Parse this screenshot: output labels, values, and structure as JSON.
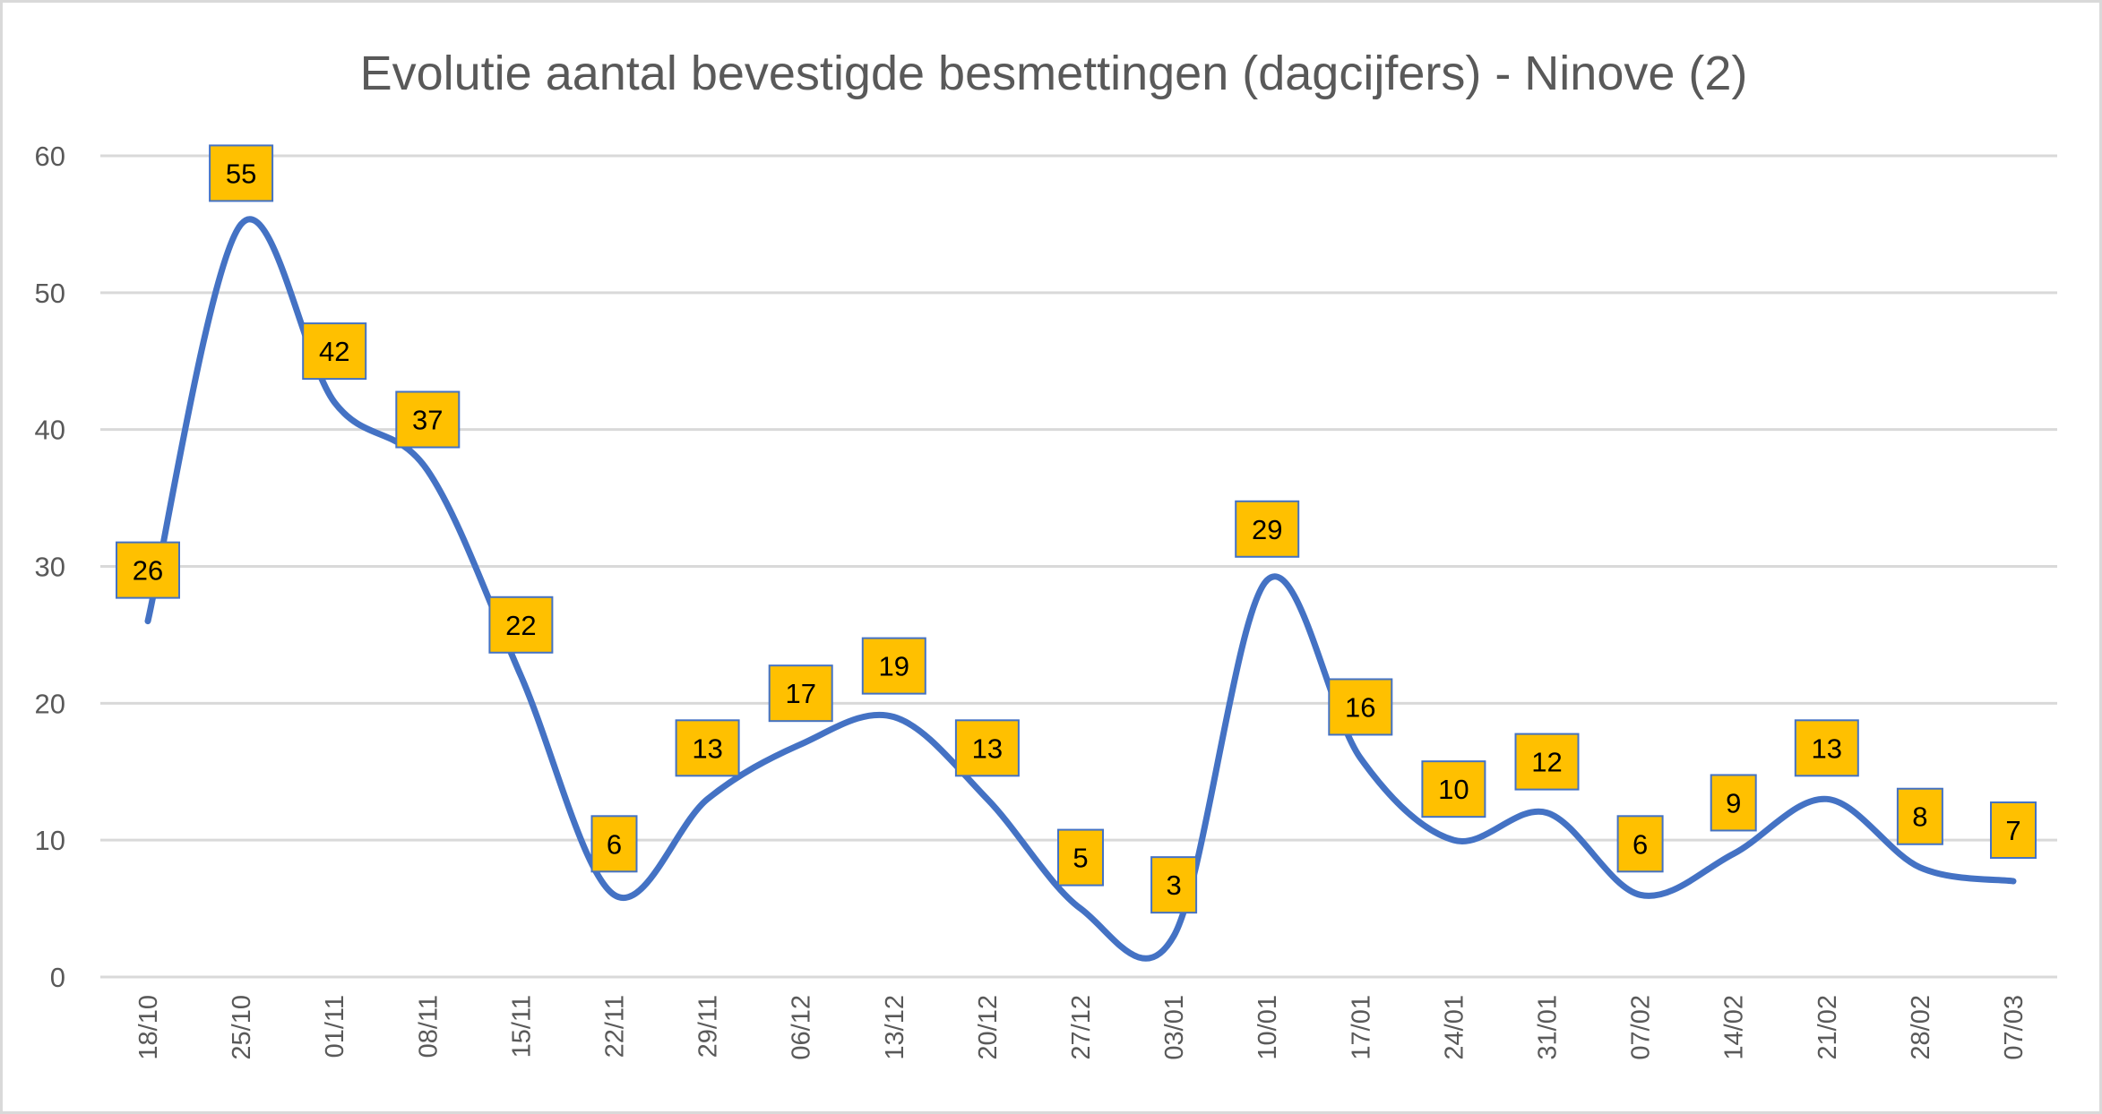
{
  "chart_data": {
    "type": "line",
    "title": "Evolutie aantal bevestigde besmettingen (dagcijfers) - Ninove (2)",
    "xlabel": "",
    "ylabel": "",
    "categories": [
      "18/10",
      "25/10",
      "01/11",
      "08/11",
      "15/11",
      "22/11",
      "29/11",
      "06/12",
      "13/12",
      "20/12",
      "27/12",
      "03/01",
      "10/01",
      "17/01",
      "24/01",
      "31/01",
      "07/02",
      "14/02",
      "21/02",
      "28/02",
      "07/03"
    ],
    "series": [
      {
        "values": [
          26,
          55,
          42,
          37,
          22,
          6,
          13,
          17,
          19,
          13,
          5,
          3,
          29,
          16,
          10,
          12,
          6,
          9,
          13,
          8,
          7
        ]
      }
    ],
    "ylim": [
      0,
      60
    ],
    "yticks": [
      0,
      10,
      20,
      30,
      40,
      50,
      60
    ],
    "grid": true,
    "smooth": true,
    "data_labels": true,
    "legend": "none",
    "colors": {
      "line": "#4472c4",
      "label_fill": "#ffc000",
      "label_border": "#4472c4",
      "grid": "#d9d9d9",
      "text": "#595959"
    }
  }
}
